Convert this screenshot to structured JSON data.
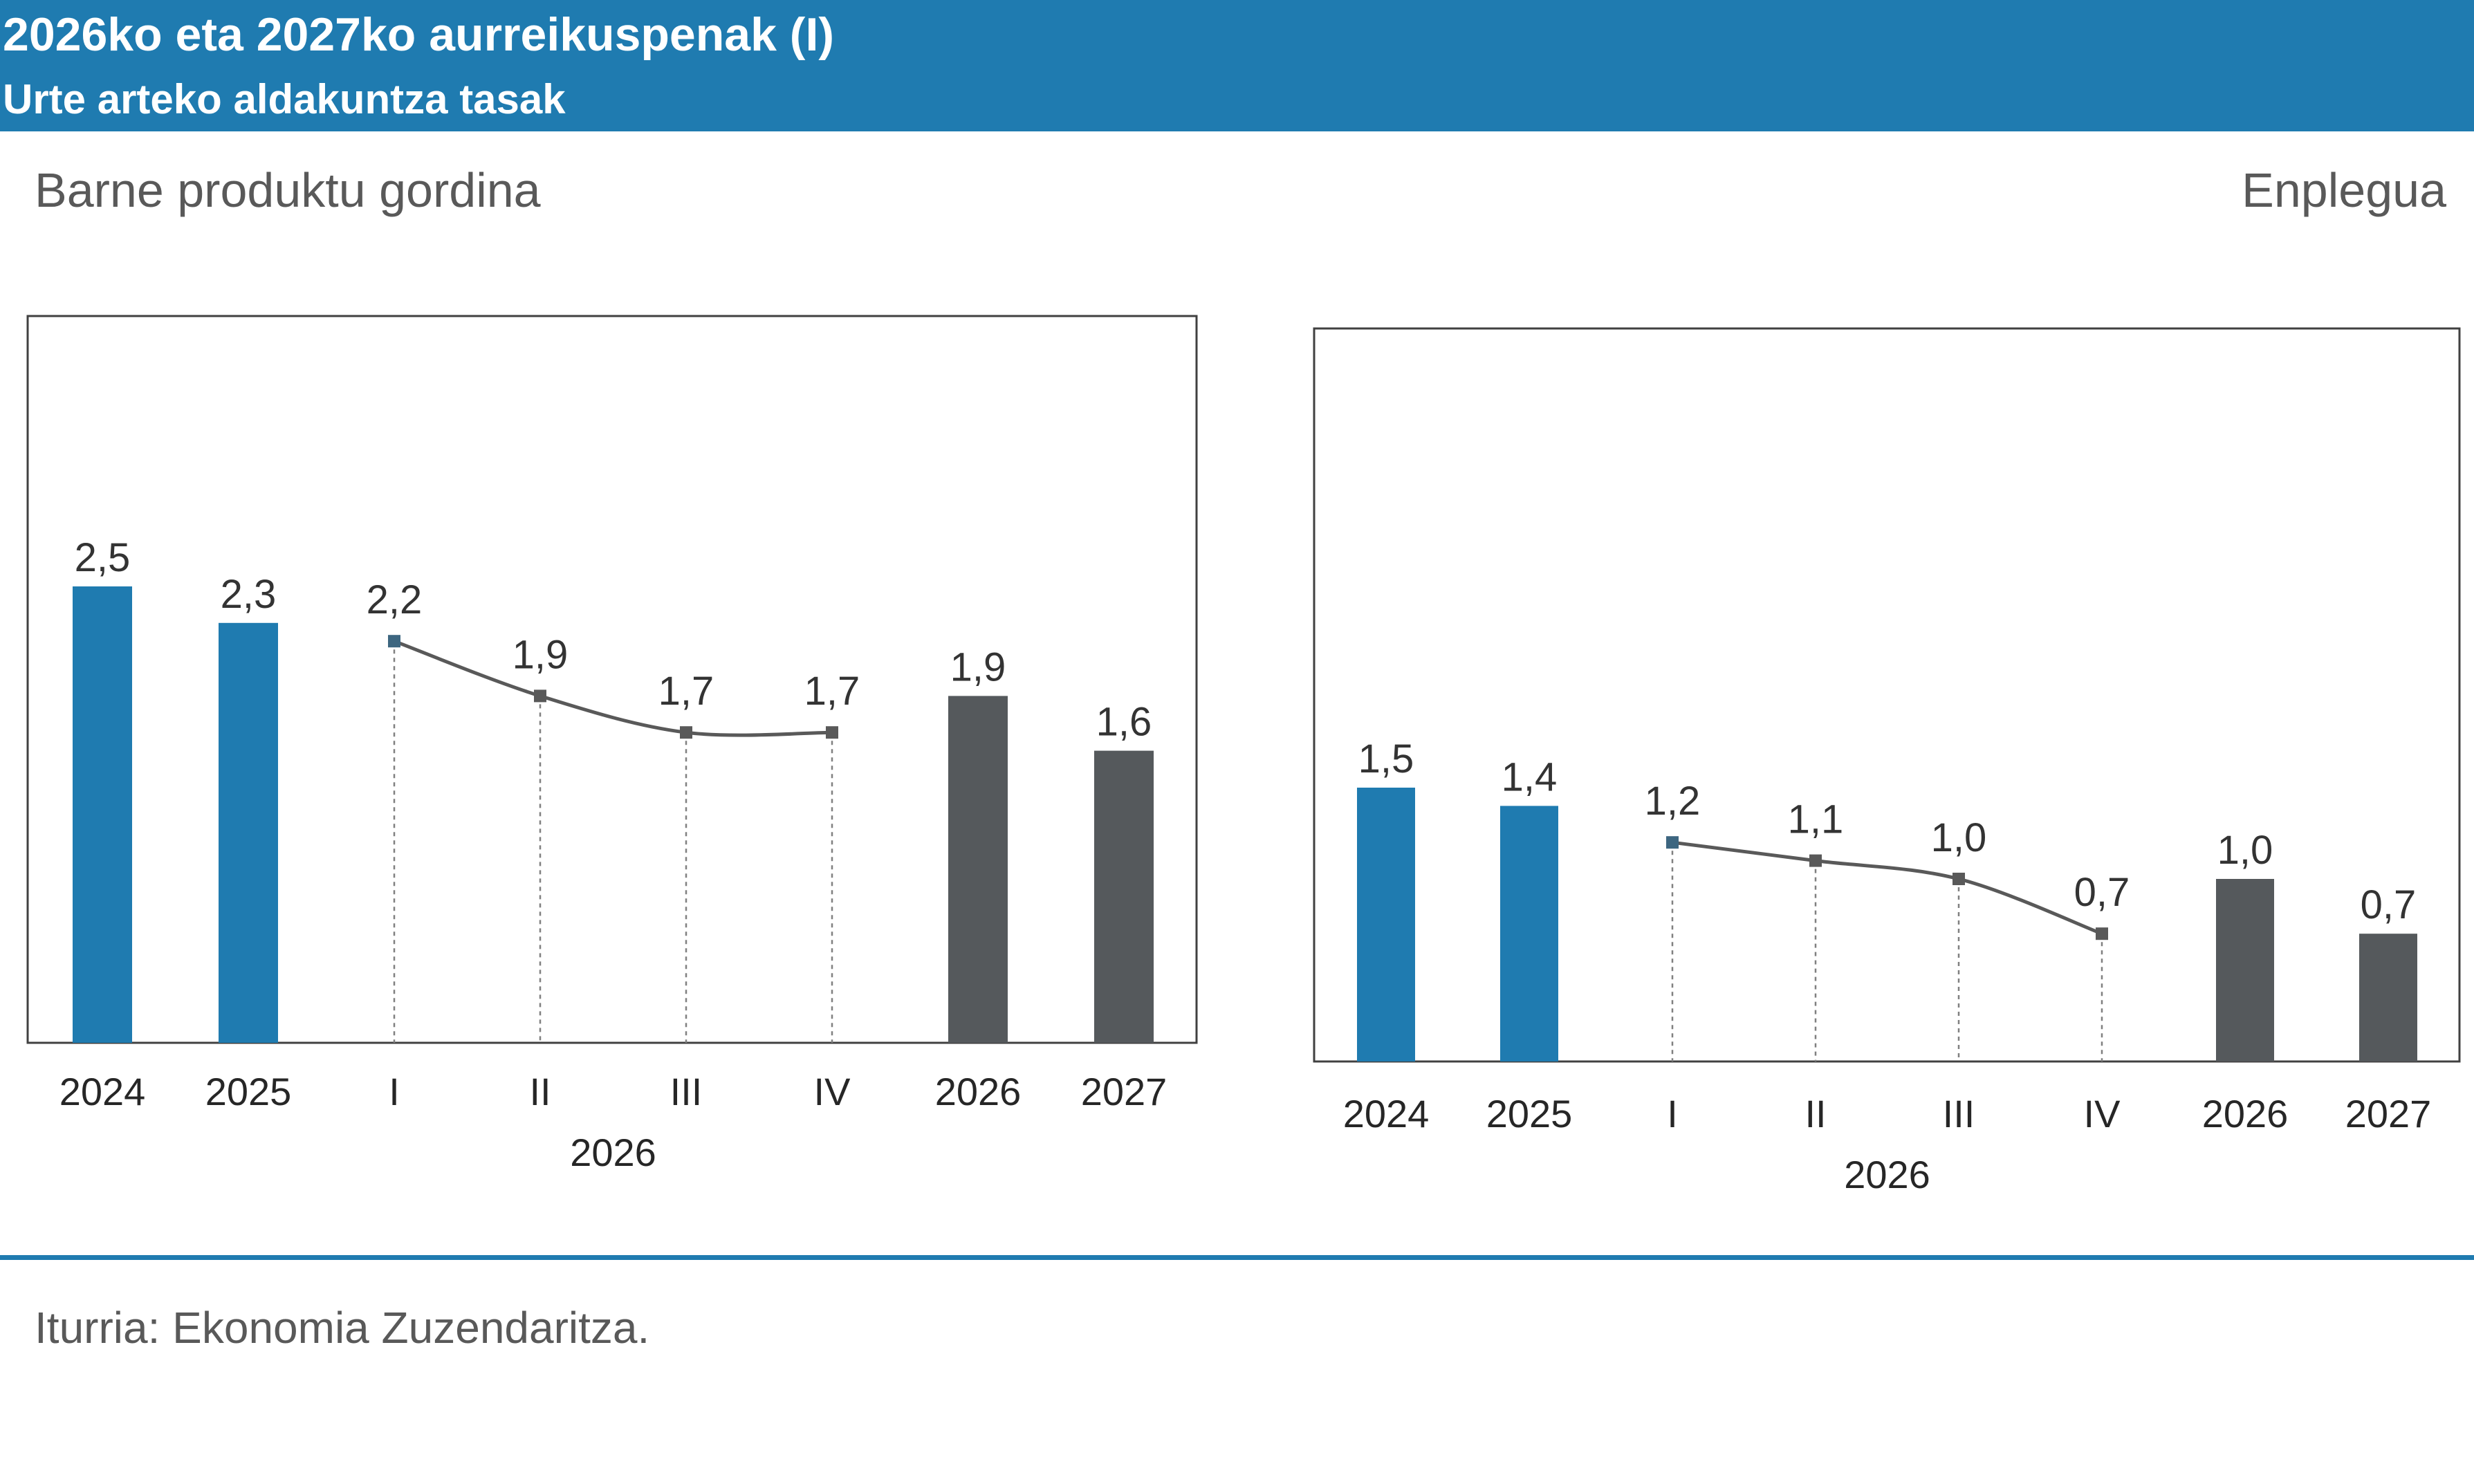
{
  "header": {
    "title": "2026ko eta 2027ko aurreikuspenak (I)",
    "subtitle": "Urte arteko aldakuntza tasak"
  },
  "source": "Iturria: Ekonomia Zuzendaritza.",
  "colors": {
    "blue": "#1f7bb0",
    "gray": "#55595c",
    "line": "#595959"
  },
  "chart_data": [
    {
      "type": "bar",
      "title": "Barne produktu gordina",
      "categories": [
        "2024",
        "2025",
        "I",
        "II",
        "III",
        "IV",
        "2026",
        "2027"
      ],
      "group_label": "2026",
      "bars": [
        {
          "category": "2024",
          "value": 2.5,
          "label": "2,5",
          "color": "blue"
        },
        {
          "category": "2025",
          "value": 2.3,
          "label": "2,3",
          "color": "blue"
        },
        {
          "category": "2026",
          "value": 1.9,
          "label": "1,9",
          "color": "gray"
        },
        {
          "category": "2027",
          "value": 1.6,
          "label": "1,6",
          "color": "gray"
        }
      ],
      "line": [
        {
          "category": "I",
          "value": 2.2,
          "label": "2,2"
        },
        {
          "category": "II",
          "value": 1.9,
          "label": "1,9"
        },
        {
          "category": "III",
          "value": 1.7,
          "label": "1,7"
        },
        {
          "category": "IV",
          "value": 1.7,
          "label": "1,7"
        }
      ],
      "ylim": [
        0,
        4.0
      ],
      "grid": false,
      "legend": "none"
    },
    {
      "type": "bar",
      "title": "Enplegua",
      "categories": [
        "2024",
        "2025",
        "I",
        "II",
        "III",
        "IV",
        "2026",
        "2027"
      ],
      "group_label": "2026",
      "bars": [
        {
          "category": "2024",
          "value": 1.5,
          "label": "1,5",
          "color": "blue"
        },
        {
          "category": "2025",
          "value": 1.4,
          "label": "1,4",
          "color": "blue"
        },
        {
          "category": "2026",
          "value": 1.0,
          "label": "1,0",
          "color": "gray"
        },
        {
          "category": "2027",
          "value": 0.7,
          "label": "0,7",
          "color": "gray"
        }
      ],
      "line": [
        {
          "category": "I",
          "value": 1.2,
          "label": "1,2"
        },
        {
          "category": "II",
          "value": 1.1,
          "label": "1,1"
        },
        {
          "category": "III",
          "value": 1.0,
          "label": "1,0"
        },
        {
          "category": "IV",
          "value": 0.7,
          "label": "0,7"
        }
      ],
      "ylim": [
        0,
        4.0
      ],
      "grid": false,
      "legend": "none"
    }
  ]
}
